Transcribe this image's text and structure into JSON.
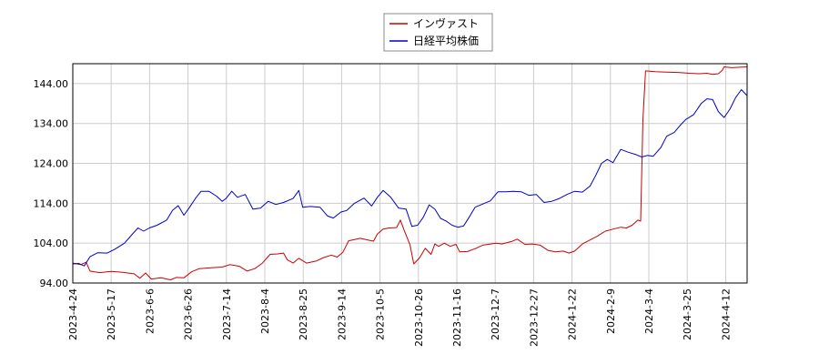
{
  "chart_data": {
    "type": "line",
    "legend": {
      "position": "top-center",
      "entries": [
        {
          "label": "インヴァスト",
          "color": "#cc0000"
        },
        {
          "label": "日経平均株価",
          "color": "#0000cc"
        }
      ]
    },
    "grid": true,
    "ylim": [
      94.0,
      149.0
    ],
    "y_ticks": [
      "94.00",
      "104.00",
      "114.00",
      "124.00",
      "134.00",
      "144.00"
    ],
    "x_ticks": [
      "2023-4-24",
      "2023-5-17",
      "2023-6-6",
      "2023-6-26",
      "2023-7-14",
      "2023-8-4",
      "2023-8-25",
      "2023-9-14",
      "2023-10-5",
      "2023-10-26",
      "2023-11-16",
      "2023-12-7",
      "2023-12-27",
      "2024-1-22",
      "2024-2-9",
      "2024-3-4",
      "2024-3-25",
      "2024-4-12"
    ],
    "x_range": [
      0,
      17.6
    ],
    "series": [
      {
        "name": "インヴァスト",
        "color": "#cc0000",
        "points": [
          [
            0,
            99.0
          ],
          [
            0.2,
            98.6
          ],
          [
            0.35,
            99.2
          ],
          [
            0.45,
            97.0
          ],
          [
            0.7,
            96.6
          ],
          [
            1.0,
            96.9
          ],
          [
            1.3,
            96.7
          ],
          [
            1.6,
            96.3
          ],
          [
            1.75,
            95.2
          ],
          [
            1.9,
            96.5
          ],
          [
            2.05,
            95.0
          ],
          [
            2.3,
            95.3
          ],
          [
            2.55,
            94.8
          ],
          [
            2.7,
            95.4
          ],
          [
            2.9,
            95.3
          ],
          [
            3.1,
            96.8
          ],
          [
            3.3,
            97.6
          ],
          [
            3.6,
            97.8
          ],
          [
            3.9,
            98.0
          ],
          [
            4.1,
            98.6
          ],
          [
            4.35,
            98.2
          ],
          [
            4.55,
            97.0
          ],
          [
            4.75,
            97.6
          ],
          [
            4.95,
            99.0
          ],
          [
            5.15,
            101.2
          ],
          [
            5.35,
            101.3
          ],
          [
            5.5,
            101.5
          ],
          [
            5.6,
            99.8
          ],
          [
            5.75,
            99.0
          ],
          [
            5.9,
            100.2
          ],
          [
            6.1,
            99.0
          ],
          [
            6.35,
            99.5
          ],
          [
            6.55,
            100.4
          ],
          [
            6.75,
            101.0
          ],
          [
            6.9,
            100.5
          ],
          [
            7.05,
            101.7
          ],
          [
            7.2,
            104.6
          ],
          [
            7.35,
            104.9
          ],
          [
            7.5,
            105.2
          ],
          [
            7.7,
            104.8
          ],
          [
            7.85,
            104.5
          ],
          [
            7.95,
            106.3
          ],
          [
            8.1,
            107.5
          ],
          [
            8.25,
            107.8
          ],
          [
            8.45,
            107.9
          ],
          [
            8.55,
            109.8
          ],
          [
            8.65,
            107.2
          ],
          [
            8.8,
            103.6
          ],
          [
            8.9,
            98.8
          ],
          [
            9.05,
            100.3
          ],
          [
            9.2,
            102.7
          ],
          [
            9.35,
            101.2
          ],
          [
            9.45,
            103.8
          ],
          [
            9.55,
            103.2
          ],
          [
            9.7,
            104.0
          ],
          [
            9.85,
            103.2
          ],
          [
            10.0,
            103.7
          ],
          [
            10.1,
            101.8
          ],
          [
            10.3,
            101.9
          ],
          [
            10.5,
            102.6
          ],
          [
            10.7,
            103.5
          ],
          [
            10.9,
            103.8
          ],
          [
            11.05,
            104.0
          ],
          [
            11.2,
            103.8
          ],
          [
            11.45,
            104.4
          ],
          [
            11.6,
            105.0
          ],
          [
            11.8,
            103.7
          ],
          [
            12.0,
            103.8
          ],
          [
            12.2,
            103.5
          ],
          [
            12.4,
            102.2
          ],
          [
            12.6,
            101.8
          ],
          [
            12.8,
            102.0
          ],
          [
            12.95,
            101.5
          ],
          [
            13.1,
            102.0
          ],
          [
            13.3,
            103.8
          ],
          [
            13.5,
            104.8
          ],
          [
            13.7,
            105.8
          ],
          [
            13.9,
            107.0
          ],
          [
            14.1,
            107.5
          ],
          [
            14.3,
            108.0
          ],
          [
            14.45,
            107.8
          ],
          [
            14.6,
            108.5
          ],
          [
            14.75,
            109.8
          ],
          [
            14.82,
            109.5
          ],
          [
            14.88,
            135.0
          ],
          [
            14.95,
            147.2
          ],
          [
            15.2,
            147.0
          ],
          [
            15.5,
            146.9
          ],
          [
            15.8,
            146.8
          ],
          [
            16.1,
            146.6
          ],
          [
            16.35,
            146.5
          ],
          [
            16.55,
            146.6
          ],
          [
            16.7,
            146.3
          ],
          [
            16.85,
            146.5
          ],
          [
            16.95,
            147.3
          ],
          [
            17.0,
            148.2
          ],
          [
            17.2,
            148.0
          ],
          [
            17.4,
            148.1
          ],
          [
            17.6,
            148.2
          ]
        ]
      },
      {
        "name": "日経平均株価",
        "color": "#0000cc",
        "points": [
          [
            0,
            98.8
          ],
          [
            0.15,
            98.9
          ],
          [
            0.3,
            98.3
          ],
          [
            0.45,
            100.6
          ],
          [
            0.65,
            101.6
          ],
          [
            0.9,
            101.5
          ],
          [
            1.1,
            102.5
          ],
          [
            1.35,
            104.0
          ],
          [
            1.55,
            106.2
          ],
          [
            1.7,
            107.8
          ],
          [
            1.85,
            107.0
          ],
          [
            2.0,
            107.8
          ],
          [
            2.2,
            108.5
          ],
          [
            2.45,
            109.8
          ],
          [
            2.6,
            112.2
          ],
          [
            2.75,
            113.4
          ],
          [
            2.9,
            111.0
          ],
          [
            3.05,
            113.0
          ],
          [
            3.2,
            115.2
          ],
          [
            3.35,
            117.0
          ],
          [
            3.55,
            117.0
          ],
          [
            3.75,
            115.8
          ],
          [
            3.9,
            114.5
          ],
          [
            4.0,
            115.2
          ],
          [
            4.15,
            117.0
          ],
          [
            4.3,
            115.5
          ],
          [
            4.5,
            116.2
          ],
          [
            4.7,
            112.5
          ],
          [
            4.9,
            112.8
          ],
          [
            5.1,
            114.5
          ],
          [
            5.3,
            113.7
          ],
          [
            5.5,
            114.2
          ],
          [
            5.75,
            115.2
          ],
          [
            5.9,
            117.2
          ],
          [
            6.0,
            113.0
          ],
          [
            6.2,
            113.2
          ],
          [
            6.45,
            113.0
          ],
          [
            6.65,
            110.8
          ],
          [
            6.8,
            110.3
          ],
          [
            7.0,
            111.8
          ],
          [
            7.15,
            112.2
          ],
          [
            7.35,
            114.0
          ],
          [
            7.6,
            115.3
          ],
          [
            7.8,
            113.3
          ],
          [
            7.95,
            115.5
          ],
          [
            8.1,
            117.2
          ],
          [
            8.3,
            115.5
          ],
          [
            8.5,
            112.8
          ],
          [
            8.7,
            112.5
          ],
          [
            8.85,
            108.2
          ],
          [
            9.0,
            108.5
          ],
          [
            9.15,
            110.5
          ],
          [
            9.3,
            113.6
          ],
          [
            9.45,
            112.5
          ],
          [
            9.6,
            110.2
          ],
          [
            9.75,
            109.5
          ],
          [
            9.9,
            108.5
          ],
          [
            10.05,
            108.0
          ],
          [
            10.2,
            108.3
          ],
          [
            10.35,
            110.6
          ],
          [
            10.5,
            113.0
          ],
          [
            10.7,
            113.8
          ],
          [
            10.9,
            114.6
          ],
          [
            11.1,
            116.9
          ],
          [
            11.3,
            116.9
          ],
          [
            11.5,
            117.0
          ],
          [
            11.7,
            116.9
          ],
          [
            11.9,
            116.0
          ],
          [
            12.1,
            116.2
          ],
          [
            12.3,
            114.2
          ],
          [
            12.5,
            114.5
          ],
          [
            12.7,
            115.2
          ],
          [
            12.9,
            116.2
          ],
          [
            13.1,
            117.0
          ],
          [
            13.3,
            116.8
          ],
          [
            13.5,
            118.3
          ],
          [
            13.65,
            121.0
          ],
          [
            13.8,
            124.0
          ],
          [
            13.95,
            125.0
          ],
          [
            14.1,
            124.2
          ],
          [
            14.3,
            127.5
          ],
          [
            14.5,
            126.8
          ],
          [
            14.7,
            126.2
          ],
          [
            14.85,
            125.6
          ],
          [
            15.0,
            126.0
          ],
          [
            15.15,
            125.8
          ],
          [
            15.35,
            128.0
          ],
          [
            15.5,
            130.8
          ],
          [
            15.7,
            131.8
          ],
          [
            15.85,
            133.5
          ],
          [
            16.0,
            135.0
          ],
          [
            16.2,
            136.2
          ],
          [
            16.4,
            139.0
          ],
          [
            16.55,
            140.2
          ],
          [
            16.7,
            140.0
          ],
          [
            16.85,
            137.0
          ],
          [
            17.0,
            135.5
          ],
          [
            17.15,
            137.6
          ],
          [
            17.3,
            140.5
          ],
          [
            17.45,
            142.5
          ],
          [
            17.6,
            141.0
          ]
        ]
      }
    ]
  }
}
